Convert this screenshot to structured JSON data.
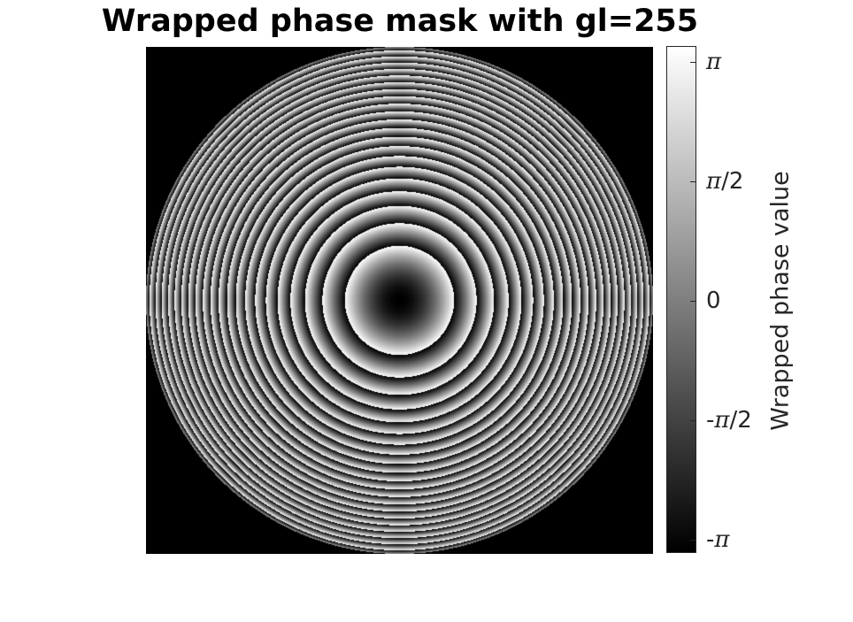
{
  "chart_data": {
    "type": "heatmap",
    "title": "Wrapped phase mask with gl=255",
    "xlabel": "",
    "ylabel": "",
    "colormap": "gray",
    "pattern": "concentric rings (wrapped quadratic phase) inside circular aperture, black outside",
    "colorbar": {
      "label": "Wrapped phase value",
      "range": [
        -3.14159,
        3.14159
      ],
      "ticks": [
        {
          "value": 3.14159,
          "sym": "π",
          "suffix": "",
          "prefix": ""
        },
        {
          "value": 1.5708,
          "sym": "π",
          "suffix": "/2",
          "prefix": ""
        },
        {
          "value": 0,
          "sym": "",
          "suffix": "0",
          "prefix": ""
        },
        {
          "value": -1.5708,
          "sym": "π",
          "suffix": "/2",
          "prefix": "-"
        },
        {
          "value": -3.14159,
          "sym": "π",
          "suffix": "",
          "prefix": "-"
        }
      ],
      "colors": {
        "low": "#000000",
        "high": "#ffffff"
      }
    }
  }
}
